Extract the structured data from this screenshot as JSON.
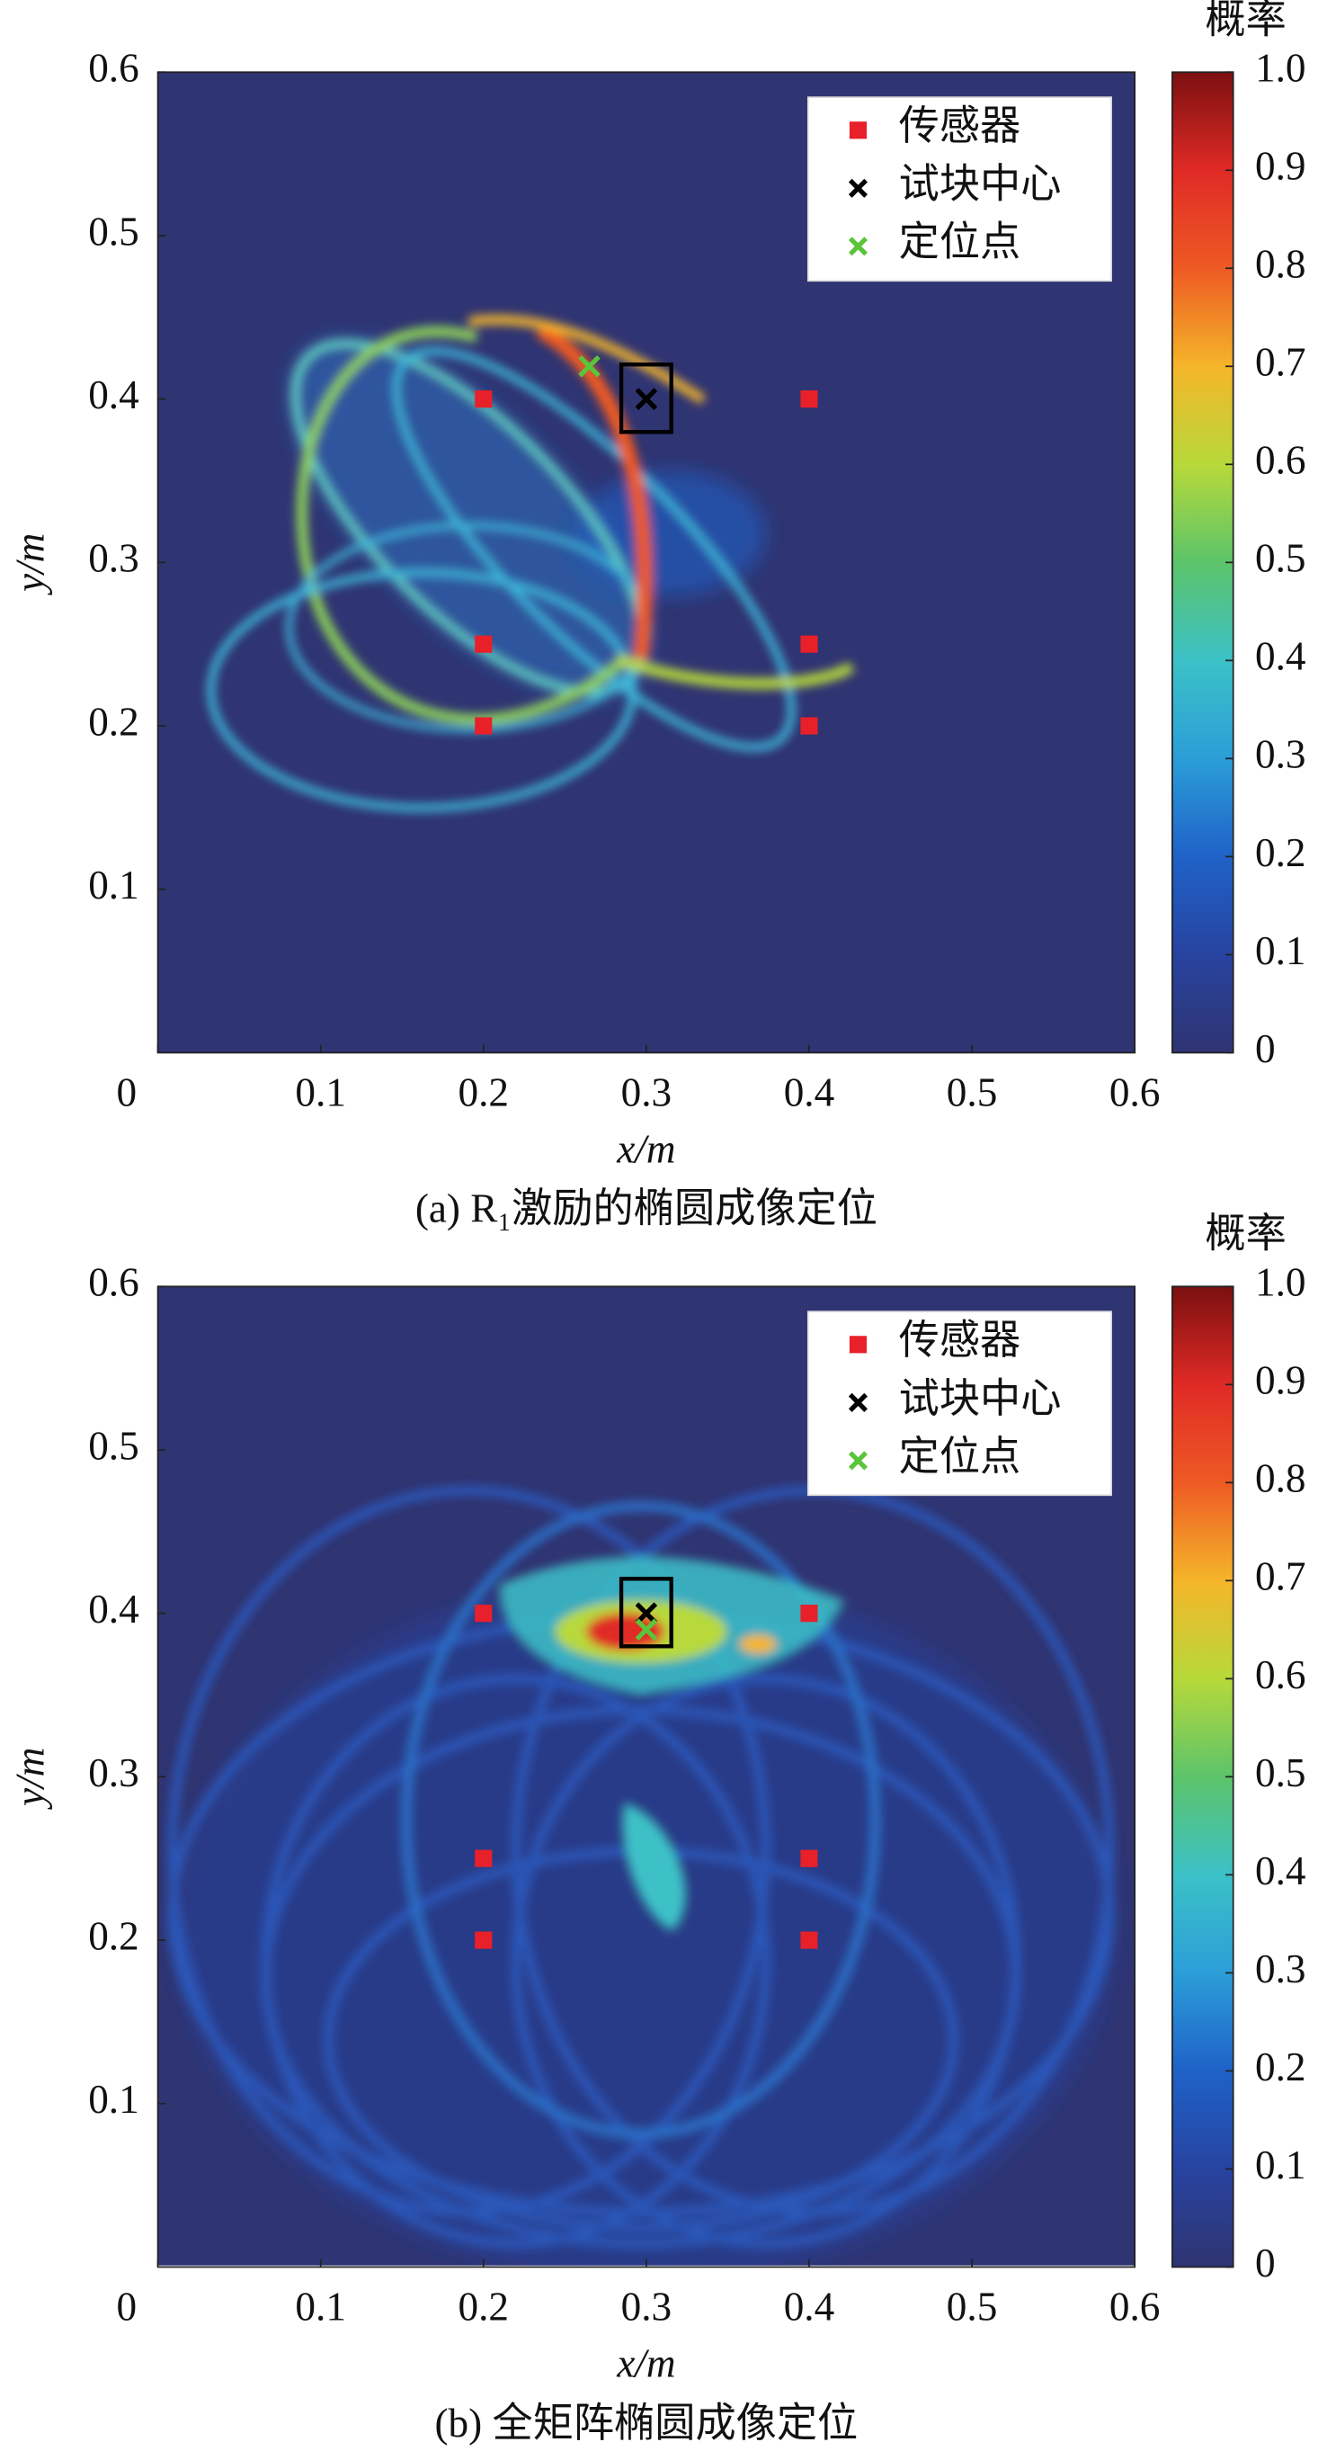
{
  "chart_data": [
    {
      "type": "heatmap-scatter",
      "caption": "(a) R₁激励的椭圆成像定位",
      "xlabel": "x/m",
      "ylabel": "y/m",
      "xlim": [
        0,
        0.6
      ],
      "ylim": [
        0,
        0.6
      ],
      "xticks": [
        0,
        0.1,
        0.2,
        0.3,
        0.4,
        0.5,
        0.6
      ],
      "yticks": [
        0.1,
        0.2,
        0.3,
        0.4,
        0.5,
        0.6
      ],
      "colorbar_title": "概率",
      "clim": [
        0,
        1
      ],
      "cticks": [
        0,
        0.1,
        0.2,
        0.3,
        0.4,
        0.5,
        0.6,
        0.7,
        0.8,
        0.9,
        {
          "value": 1,
          "label": "1.0"
        }
      ],
      "colormap": [
        "#2f3472",
        "#2843a0",
        "#1f62c8",
        "#2b9ed8",
        "#3cc1c7",
        "#5cc46a",
        "#b7d93a",
        "#f5b52a",
        "#ee5a24",
        "#e02a26",
        "#7b1010"
      ],
      "legend": "upper right",
      "series": [
        {
          "name": "传感器",
          "color": "#e8202a",
          "marker": "square",
          "x": [
            0.2,
            0.4,
            0.2,
            0.4,
            0.2,
            0.4
          ],
          "y": [
            0.4,
            0.4,
            0.25,
            0.25,
            0.2,
            0.2
          ]
        },
        {
          "name": "试块中心",
          "color": "#000000",
          "marker": "x",
          "x": [
            0.3
          ],
          "y": [
            0.4
          ]
        },
        {
          "name": "定位点",
          "color": "#5ac43a",
          "marker": "x",
          "x": [
            0.265
          ],
          "y": [
            0.42
          ]
        }
      ]
    },
    {
      "type": "heatmap-scatter",
      "caption": "(b) 全矩阵椭圆成像定位",
      "xlabel": "x/m",
      "ylabel": "y/m",
      "xlim": [
        0,
        0.6
      ],
      "ylim": [
        0,
        0.6
      ],
      "xticks": [
        0,
        0.1,
        0.2,
        0.3,
        0.4,
        0.5,
        0.6
      ],
      "yticks": [
        0.1,
        0.2,
        0.3,
        0.4,
        0.5,
        0.6
      ],
      "colorbar_title": "概率",
      "clim": [
        0,
        1
      ],
      "cticks": [
        0,
        0.1,
        0.2,
        0.3,
        0.4,
        0.5,
        0.6,
        0.7,
        0.8,
        0.9,
        {
          "value": 1,
          "label": "1.0"
        }
      ],
      "colormap": [
        "#2f3472",
        "#2843a0",
        "#1f62c8",
        "#2b9ed8",
        "#3cc1c7",
        "#5cc46a",
        "#b7d93a",
        "#f5b52a",
        "#ee5a24",
        "#e02a26",
        "#7b1010"
      ],
      "legend": "upper right",
      "series": [
        {
          "name": "传感器",
          "color": "#e8202a",
          "marker": "square",
          "x": [
            0.2,
            0.4,
            0.2,
            0.4,
            0.2,
            0.4
          ],
          "y": [
            0.4,
            0.4,
            0.25,
            0.25,
            0.2,
            0.2
          ]
        },
        {
          "name": "试块中心",
          "color": "#000000",
          "marker": "x",
          "x": [
            0.3
          ],
          "y": [
            0.4
          ]
        },
        {
          "name": "定位点",
          "color": "#5ac43a",
          "marker": "x",
          "x": [
            0.3
          ],
          "y": [
            0.39
          ]
        }
      ]
    }
  ]
}
